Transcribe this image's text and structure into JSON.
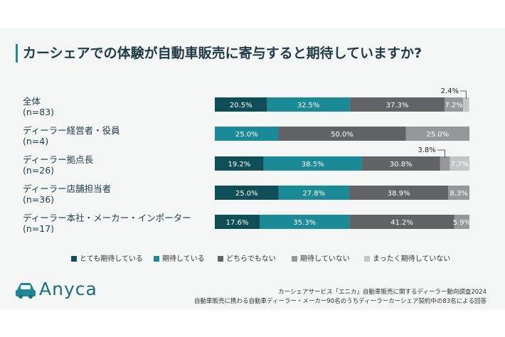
{
  "title": "カーシェアでの体験が自動車販売に寄与すると期待していますか?",
  "chart_data": {
    "type": "bar",
    "orientation": "horizontal-stacked-100",
    "title": "カーシェアでの体験が自動車販売に寄与すると期待していますか?",
    "categories": [
      {
        "name": "全体",
        "n": "(n=83)"
      },
      {
        "name": "ディーラー経営者・役員",
        "n": "(n=4)"
      },
      {
        "name": "ディーラー拠点長",
        "n": "(n=26)"
      },
      {
        "name": "ディーラー店舗担当者",
        "n": "(n=36)"
      },
      {
        "name": "ディーラー本社・メーカー・インポーター",
        "n": "(n=17)"
      }
    ],
    "series": [
      {
        "name": "とても期待している",
        "color": "#0f4e56",
        "values": [
          20.5,
          0,
          19.2,
          25.0,
          17.6
        ],
        "labels": [
          "20.5%",
          "",
          "19.2%",
          "25.0%",
          "17.6%"
        ]
      },
      {
        "name": "期待している",
        "color": "#1b8a97",
        "values": [
          32.5,
          25.0,
          38.5,
          27.8,
          35.3
        ],
        "labels": [
          "32.5%",
          "25.0%",
          "38.5%",
          "27.8%",
          "35.3%"
        ]
      },
      {
        "name": "どちらでもない",
        "color": "#616366",
        "values": [
          37.3,
          50.0,
          30.8,
          38.9,
          41.2
        ],
        "labels": [
          "37.3%",
          "50.0%",
          "30.8%",
          "38.9%",
          "41.2%"
        ]
      },
      {
        "name": "期待していない",
        "color": "#969799",
        "values": [
          7.2,
          25.0,
          3.8,
          8.3,
          5.9
        ],
        "labels": [
          "7.2%",
          "25.0%",
          "3.8%",
          "8.3%",
          "5.9%"
        ]
      },
      {
        "name": "まったく期待していない",
        "color": "#c4c5c7",
        "values": [
          2.4,
          0,
          7.7,
          0,
          0
        ],
        "labels": [
          "2.4%",
          "",
          "7.7%",
          "",
          ""
        ]
      }
    ],
    "xlim": [
      0,
      100
    ],
    "legend_position": "bottom"
  },
  "legend_labels": [
    "とても期待している",
    "期待している",
    "どちらでもない",
    "期待していない",
    "まったく期待していない"
  ],
  "logo": {
    "text": "Anyca",
    "icon": "car-icon"
  },
  "source": {
    "line1": "カーシェアサービス「エニカ」自動車販売に関するディーラー動向調査2024",
    "line2": "自動車販売に携わる自動車ディーラー・メーカー90名のうちディーラーカーシェア契約中の83名による回答"
  }
}
